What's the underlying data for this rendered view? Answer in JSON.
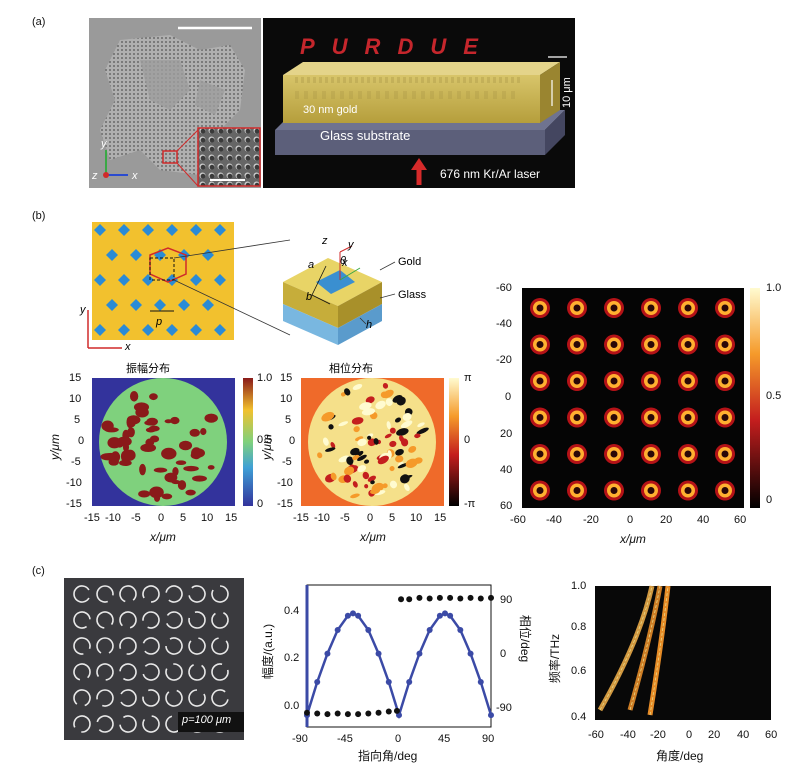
{
  "panel_labels": {
    "a": "(a)",
    "b": "(b)",
    "c": "(c)"
  },
  "panel_a": {
    "purdue_text": "PURDUE",
    "thickness_label": "10 μm",
    "gold_label": "30 nm gold",
    "substrate_label": "Glass substrate",
    "laser_label": "676 nm Kr/Ar laser",
    "axis_y": "y",
    "axis_x": "x",
    "axis_z": "z"
  },
  "panel_b": {
    "schematic": {
      "gold": "Gold",
      "glass": "Glass",
      "a": "a",
      "b": "b",
      "h": "h",
      "theta": "θ",
      "p": "p",
      "x": "x",
      "y": "y",
      "z": "z"
    },
    "amplitude_title": "振幅分布",
    "phase_title": "相位分布",
    "ylabel": "y/μm",
    "xlabel": "x/μm",
    "xticks": [
      "-15",
      "-10",
      "-5",
      "0",
      "5",
      "10",
      "15"
    ],
    "yticks": [
      "15",
      "10",
      "5",
      "0",
      "-5",
      "-10",
      "-15"
    ],
    "amp_cbar": [
      "1.0",
      "0.5",
      "0"
    ],
    "phase_cbar": [
      "π",
      "0",
      "-π"
    ],
    "focal_xticks": [
      "-60",
      "-40",
      "-20",
      "0",
      "20",
      "40",
      "60"
    ],
    "focal_yticks": [
      "-60",
      "-40",
      "-20",
      "0",
      "20",
      "40",
      "60"
    ],
    "focal_xlabel": "x/μm",
    "focal_cbar": [
      "1.0",
      "0.5",
      "0"
    ]
  },
  "panel_c": {
    "period_label": "p=100 μm",
    "chart_data": {
      "type": "line",
      "xlabel": "指向角/deg",
      "ylabel": "幅度/(a.u.)",
      "y2label": "相位/deg",
      "xticks": [
        "-90",
        "-45",
        "0",
        "45",
        "90"
      ],
      "yticks": [
        "0.0",
        "0.2",
        "0.4"
      ],
      "y2ticks": [
        "90",
        "0",
        "-90"
      ],
      "xlim": [
        -90,
        90
      ],
      "ylim": [
        -0.05,
        0.55
      ],
      "y2lim": [
        -110,
        110
      ],
      "series": [
        {
          "axis": "left",
          "color": "#3b4aa6",
          "x": [
            -90,
            -80,
            -70,
            -60,
            -50,
            -45,
            -40,
            -30,
            -20,
            -10,
            0,
            10,
            20,
            30,
            40,
            45,
            50,
            60,
            70,
            80,
            90
          ],
          "y": [
            0.0,
            0.14,
            0.26,
            0.36,
            0.42,
            0.43,
            0.42,
            0.36,
            0.26,
            0.14,
            0.0,
            0.14,
            0.26,
            0.36,
            0.42,
            0.43,
            0.42,
            0.36,
            0.26,
            0.14,
            0.0
          ]
        },
        {
          "axis": "right",
          "color": "#111111",
          "x": [
            -90,
            -80,
            -70,
            -60,
            -50,
            -40,
            -30,
            -20,
            -10,
            -2,
            2,
            10,
            20,
            30,
            40,
            50,
            60,
            70,
            80,
            90
          ],
          "y": [
            -88,
            -89,
            -90,
            -89,
            -90,
            -90,
            -89,
            -88,
            -86,
            -85,
            88,
            88,
            90,
            89,
            90,
            90,
            89,
            90,
            89,
            90
          ]
        }
      ]
    },
    "dispersion": {
      "ylabel": "频率/THz",
      "xlabel": "角度/deg",
      "xticks": [
        "-60",
        "-40",
        "-20",
        "0",
        "20",
        "40",
        "60"
      ],
      "yticks": [
        "1.0",
        "0.8",
        "0.6",
        "0.4"
      ]
    }
  }
}
